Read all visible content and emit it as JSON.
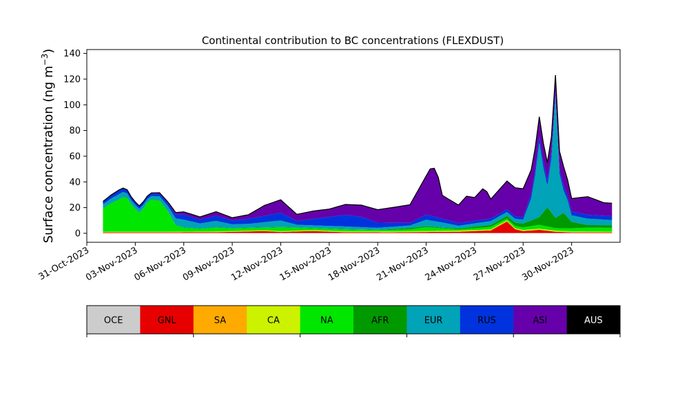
{
  "chart_data": {
    "type": "area",
    "title": "Continental contribution to BC concentrations (FLEXDUST)",
    "ylabel": "Surface concentration (ng m",
    "ylabel_sup": "−3",
    "ylabel_close": ")",
    "xlabel": "",
    "ylim": [
      -7,
      143
    ],
    "yticks": [
      0,
      20,
      40,
      60,
      80,
      100,
      120,
      140
    ],
    "x_start": "2023-10-31",
    "x_end": "2023-12-03",
    "x_step_days": 0.25,
    "xticks": [
      {
        "date": "2023-10-31",
        "label": "31-Oct-2023"
      },
      {
        "date": "2023-11-03",
        "label": "03-Nov-2023"
      },
      {
        "date": "2023-11-06",
        "label": "06-Nov-2023"
      },
      {
        "date": "2023-11-09",
        "label": "09-Nov-2023"
      },
      {
        "date": "2023-11-12",
        "label": "12-Nov-2023"
      },
      {
        "date": "2023-11-15",
        "label": "15-Nov-2023"
      },
      {
        "date": "2023-11-18",
        "label": "18-Nov-2023"
      },
      {
        "date": "2023-11-21",
        "label": "21-Nov-2023"
      },
      {
        "date": "2023-11-24",
        "label": "24-Nov-2023"
      },
      {
        "date": "2023-11-27",
        "label": "27-Nov-2023"
      },
      {
        "date": "2023-11-30",
        "label": "30-Nov-2023"
      }
    ],
    "total_outline_color": "#000000",
    "series": [
      {
        "name": "OCE",
        "color": "#cccccc",
        "text_color": "#000000",
        "keys": [
          [
            "2023-11-01",
            0.2
          ],
          [
            "2023-12-02.5",
            0.2
          ]
        ]
      },
      {
        "name": "GNL",
        "color": "#e60000",
        "text_color": "#000000",
        "keys": [
          [
            "2023-11-01",
            0.5
          ],
          [
            "2023-11-05",
            0.5
          ],
          [
            "2023-11-08",
            0.6
          ],
          [
            "2023-11-11",
            1.5
          ],
          [
            "2023-11-12",
            0.8
          ],
          [
            "2023-11-13",
            1.2
          ],
          [
            "2023-11-14",
            1.5
          ],
          [
            "2023-11-16",
            0.6
          ],
          [
            "2023-11-19",
            0.5
          ],
          [
            "2023-11-21",
            0.8
          ],
          [
            "2023-11-23",
            1.0
          ],
          [
            "2023-11-24",
            1.5
          ],
          [
            "2023-11-25",
            2.0
          ],
          [
            "2023-11-26",
            9.0
          ],
          [
            "2023-11-26.5",
            3.0
          ],
          [
            "2023-11-27",
            1.5
          ],
          [
            "2023-11-28",
            2.5
          ],
          [
            "2023-11-29",
            1.0
          ],
          [
            "2023-11-30",
            0.5
          ],
          [
            "2023-12-02.5",
            0.5
          ]
        ]
      },
      {
        "name": "SA",
        "color": "#ffaa00",
        "text_color": "#000000",
        "keys": [
          [
            "2023-11-01",
            0.1
          ],
          [
            "2023-12-02.5",
            0.1
          ]
        ]
      },
      {
        "name": "CA",
        "color": "#ccf200",
        "text_color": "#000000",
        "keys": [
          [
            "2023-11-01",
            0.4
          ],
          [
            "2023-11-28",
            0.8
          ],
          [
            "2023-12-02.5",
            0.5
          ]
        ]
      },
      {
        "name": "NA",
        "color": "#00e600",
        "text_color": "#000000",
        "keys": [
          [
            "2023-11-01",
            18
          ],
          [
            "2023-11-01.5",
            22
          ],
          [
            "2023-11-02",
            25
          ],
          [
            "2023-11-02.4",
            28
          ],
          [
            "2023-11-02.8",
            20
          ],
          [
            "2023-11-03.3",
            14
          ],
          [
            "2023-11-03.7",
            22
          ],
          [
            "2023-11-04",
            25
          ],
          [
            "2023-11-04.5",
            24
          ],
          [
            "2023-11-05",
            16
          ],
          [
            "2023-11-05.5",
            5
          ],
          [
            "2023-11-06",
            3
          ],
          [
            "2023-11-07",
            2
          ],
          [
            "2023-11-08",
            3
          ],
          [
            "2023-11-09",
            2
          ],
          [
            "2023-11-10",
            2
          ],
          [
            "2023-11-11",
            2
          ],
          [
            "2023-11-12",
            3
          ],
          [
            "2023-11-14",
            1.5
          ],
          [
            "2023-11-16",
            1.5
          ],
          [
            "2023-11-18",
            1.0
          ],
          [
            "2023-11-20",
            1.5
          ],
          [
            "2023-11-21",
            3.0
          ],
          [
            "2023-11-22",
            2.0
          ],
          [
            "2023-11-23",
            1.0
          ],
          [
            "2023-11-25",
            2.0
          ],
          [
            "2023-11-26",
            1.5
          ],
          [
            "2023-11-27",
            2.0
          ],
          [
            "2023-11-28",
            3.0
          ],
          [
            "2023-11-29",
            2.0
          ],
          [
            "2023-11-30",
            2.5
          ],
          [
            "2023-12-01",
            3.0
          ],
          [
            "2023-12-02.5",
            3.0
          ]
        ]
      },
      {
        "name": "AFR",
        "color": "#009900",
        "text_color": "#000000",
        "keys": [
          [
            "2023-11-01",
            0.3
          ],
          [
            "2023-11-18",
            0.3
          ],
          [
            "2023-11-20",
            1.0
          ],
          [
            "2023-11-22",
            0.5
          ],
          [
            "2023-11-25",
            1.5
          ],
          [
            "2023-11-26",
            2.0
          ],
          [
            "2023-11-27",
            3.0
          ],
          [
            "2023-11-28",
            6.0
          ],
          [
            "2023-11-28.5",
            15
          ],
          [
            "2023-11-29",
            8.0
          ],
          [
            "2023-11-29.5",
            12
          ],
          [
            "2023-11-30",
            5.0
          ],
          [
            "2023-12-01",
            2.0
          ],
          [
            "2023-12-02.5",
            2.0
          ]
        ]
      },
      {
        "name": "EUR",
        "color": "#00a3b7",
        "text_color": "#000000",
        "keys": [
          [
            "2023-11-01",
            3.0
          ],
          [
            "2023-11-02",
            4.0
          ],
          [
            "2023-11-03",
            3.0
          ],
          [
            "2023-11-04",
            2.5
          ],
          [
            "2023-11-05",
            4.0
          ],
          [
            "2023-11-06",
            6.0
          ],
          [
            "2023-11-07",
            4.0
          ],
          [
            "2023-11-08",
            5.0
          ],
          [
            "2023-11-09",
            3.0
          ],
          [
            "2023-11-10",
            3.0
          ],
          [
            "2023-11-11",
            4.0
          ],
          [
            "2023-11-12",
            5.0
          ],
          [
            "2023-11-13",
            2.0
          ],
          [
            "2023-11-14",
            2.0
          ],
          [
            "2023-11-16",
            2.0
          ],
          [
            "2023-11-18",
            1.5
          ],
          [
            "2023-11-20",
            2.0
          ],
          [
            "2023-11-21",
            5.0
          ],
          [
            "2023-11-22",
            4.0
          ],
          [
            "2023-11-23",
            2.0
          ],
          [
            "2023-11-25",
            3.0
          ],
          [
            "2023-11-26",
            3.0
          ],
          [
            "2023-11-27",
            3.0
          ],
          [
            "2023-11-27.6",
            20
          ],
          [
            "2023-11-28",
            58
          ],
          [
            "2023-11-28.3",
            30
          ],
          [
            "2023-11-28.6",
            10
          ],
          [
            "2023-11-29",
            95
          ],
          [
            "2023-11-29.3",
            20
          ],
          [
            "2023-11-29.7",
            15
          ],
          [
            "2023-11-30",
            5.0
          ],
          [
            "2023-12-01",
            5.0
          ],
          [
            "2023-12-02.5",
            4.0
          ]
        ]
      },
      {
        "name": "RUS",
        "color": "#0033dd",
        "text_color": "#000000",
        "keys": [
          [
            "2023-11-01",
            2.0
          ],
          [
            "2023-11-02",
            3.0
          ],
          [
            "2023-11-03",
            2.0
          ],
          [
            "2023-11-04",
            2.0
          ],
          [
            "2023-11-05",
            2.0
          ],
          [
            "2023-11-06",
            4.0
          ],
          [
            "2023-11-07",
            3.0
          ],
          [
            "2023-11-08",
            4.0
          ],
          [
            "2023-11-09",
            3.0
          ],
          [
            "2023-11-10",
            4.0
          ],
          [
            "2023-11-11",
            5.0
          ],
          [
            "2023-11-12",
            6.0
          ],
          [
            "2023-11-13",
            3.0
          ],
          [
            "2023-11-14",
            5.0
          ],
          [
            "2023-11-15",
            7.0
          ],
          [
            "2023-11-16",
            9.0
          ],
          [
            "2023-11-17",
            8.0
          ],
          [
            "2023-11-18",
            4.0
          ],
          [
            "2023-11-19",
            3.0
          ],
          [
            "2023-11-20",
            2.0
          ],
          [
            "2023-11-21",
            4.0
          ],
          [
            "2023-11-22",
            3.0
          ],
          [
            "2023-11-23",
            2.0
          ],
          [
            "2023-11-25",
            2.0
          ],
          [
            "2023-11-27",
            2.0
          ],
          [
            "2023-11-28",
            5.0
          ],
          [
            "2023-11-29",
            4.0
          ],
          [
            "2023-11-30",
            3.0
          ],
          [
            "2023-12-01",
            3.0
          ],
          [
            "2023-12-02.5",
            3.0
          ]
        ]
      },
      {
        "name": "ASI",
        "color": "#6600aa",
        "text_color": "#000000",
        "keys": [
          [
            "2023-11-01",
            0.2
          ],
          [
            "2023-11-03",
            0.2
          ],
          [
            "2023-11-04",
            0.3
          ],
          [
            "2023-11-05",
            1.0
          ],
          [
            "2023-11-06",
            2.0
          ],
          [
            "2023-11-07",
            2.0
          ],
          [
            "2023-11-08",
            3.0
          ],
          [
            "2023-11-09",
            2.0
          ],
          [
            "2023-11-10",
            3.0
          ],
          [
            "2023-11-11",
            8.0
          ],
          [
            "2023-11-12",
            10.0
          ],
          [
            "2023-11-13",
            5.0
          ],
          [
            "2023-11-14",
            6.0
          ],
          [
            "2023-11-15",
            6.0
          ],
          [
            "2023-11-16",
            8.0
          ],
          [
            "2023-11-17",
            9.0
          ],
          [
            "2023-11-18",
            10.0
          ],
          [
            "2023-11-19",
            12.0
          ],
          [
            "2023-11-20",
            14.0
          ],
          [
            "2023-11-21",
            30.0
          ],
          [
            "2023-11-21.4",
            40.0
          ],
          [
            "2023-11-21.8",
            30.0
          ],
          [
            "2023-11-22",
            18.0
          ],
          [
            "2023-11-23",
            14.0
          ],
          [
            "2023-11-23.5",
            20.0
          ],
          [
            "2023-11-24",
            18.0
          ],
          [
            "2023-11-24.6",
            25.0
          ],
          [
            "2023-11-25",
            15.0
          ],
          [
            "2023-11-26",
            22.0
          ],
          [
            "2023-11-27",
            22.0
          ],
          [
            "2023-11-28",
            15.0
          ],
          [
            "2023-11-29",
            12.0
          ],
          [
            "2023-11-29.5",
            15.0
          ],
          [
            "2023-11-30",
            10.0
          ],
          [
            "2023-12-01",
            14.0
          ],
          [
            "2023-12-02",
            10.0
          ],
          [
            "2023-12-02.5",
            10.0
          ]
        ]
      },
      {
        "name": "AUS",
        "color": "#000000",
        "text_color": "#ffffff",
        "keys": [
          [
            "2023-11-01",
            0.1
          ],
          [
            "2023-12-02.5",
            0.1
          ]
        ]
      }
    ]
  }
}
